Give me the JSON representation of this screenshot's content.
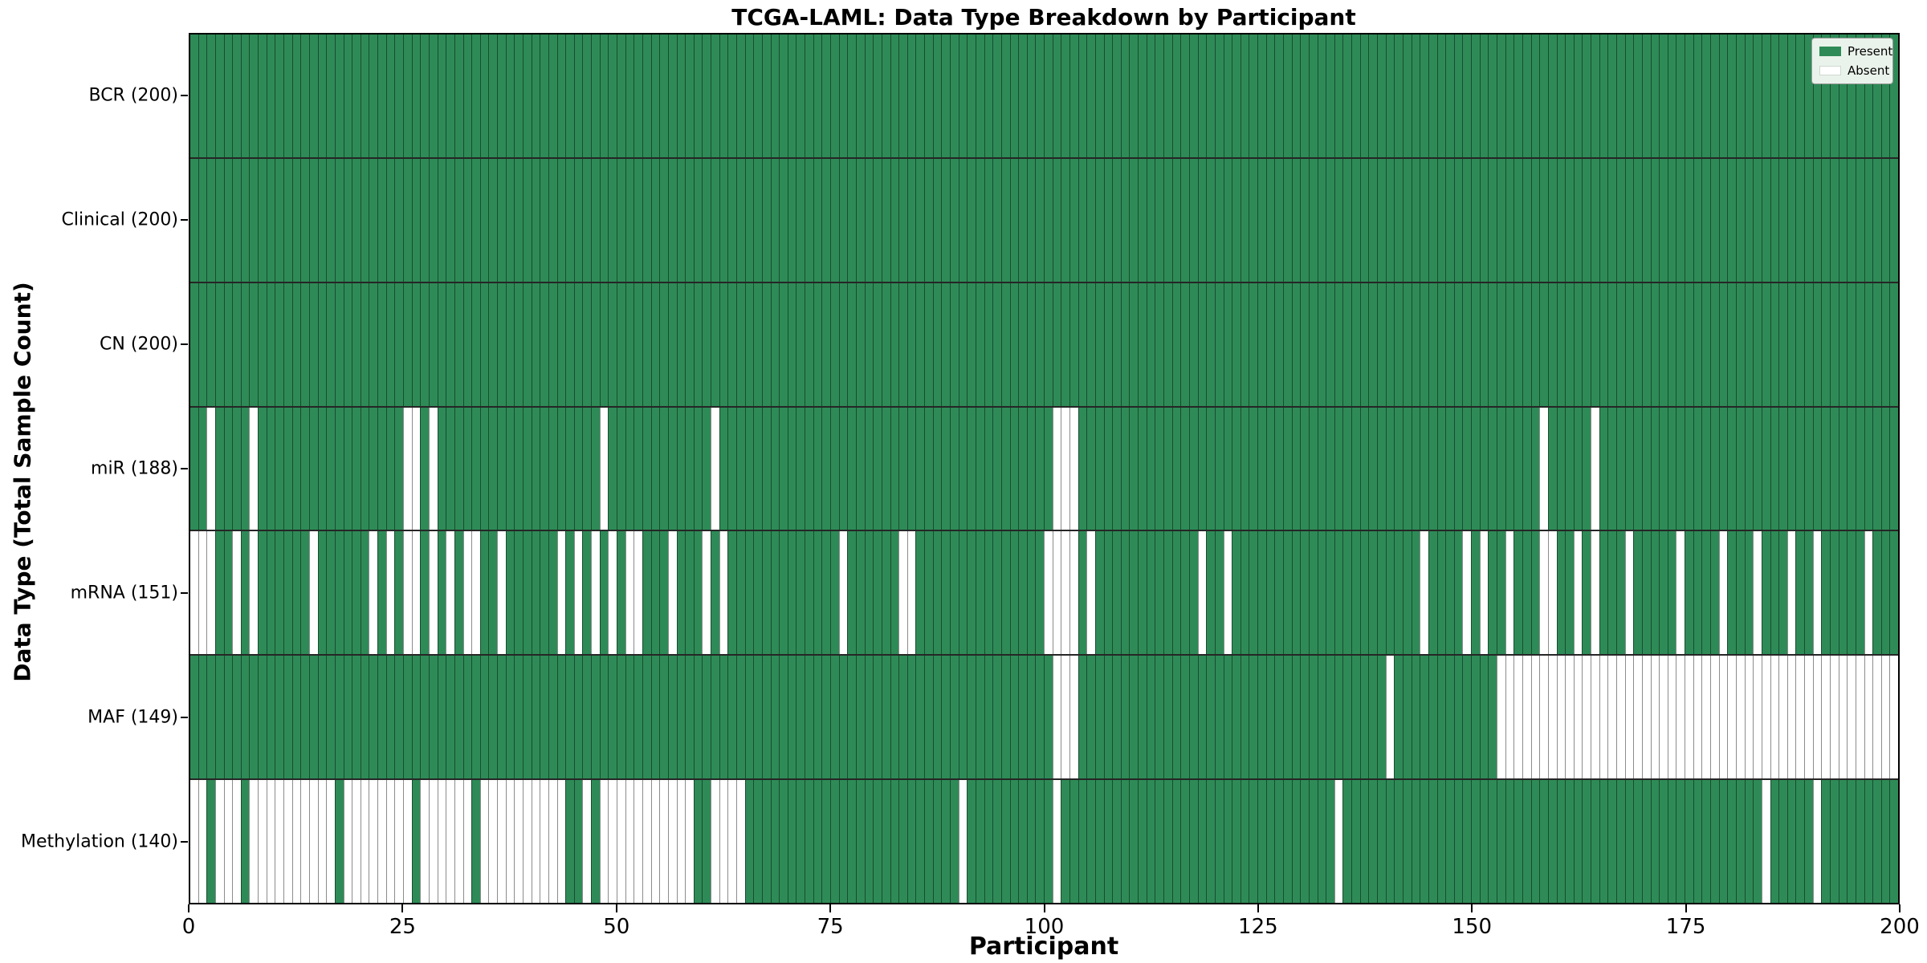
{
  "title": "TCGA-LAML: Data Type Breakdown by Participant",
  "xlabel": "Participant",
  "ylabel": "Data Type (Total Sample Count)",
  "legend": {
    "present_label": "Present",
    "absent_label": "Absent",
    "position": "upper right"
  },
  "colors": {
    "present": "#2e8b57",
    "absent": "#ffffff",
    "cell_edge": "rgba(0,0,0,0.45)",
    "row_separator": "#000000",
    "legend_bg": "#eaf3eb"
  },
  "n_participants": 200,
  "chart_data": {
    "type": "heatmap",
    "x_axis": {
      "label": "Participant",
      "range": [
        0,
        200
      ],
      "ticks": [
        0,
        25,
        50,
        75,
        100,
        125,
        150,
        175,
        200
      ]
    },
    "y_axis": {
      "label": "Data Type (Total Sample Count)"
    },
    "cell_states": [
      "Present",
      "Absent"
    ],
    "rows": [
      {
        "name": "BCR",
        "label": "BCR (200)",
        "present_count": 200,
        "absent_participants": []
      },
      {
        "name": "Clinical",
        "label": "Clinical (200)",
        "present_count": 200,
        "absent_participants": []
      },
      {
        "name": "CN",
        "label": "CN (200)",
        "present_count": 200,
        "absent_participants": []
      },
      {
        "name": "miR",
        "label": "miR (188)",
        "present_count": 188,
        "absent_participants": [
          2,
          7,
          25,
          26,
          28,
          48,
          61,
          101,
          102,
          103,
          158,
          164
        ]
      },
      {
        "name": "mRNA",
        "label": "mRNA (151)",
        "present_count": 151,
        "absent_participants": [
          0,
          1,
          2,
          5,
          7,
          14,
          21,
          23,
          25,
          26,
          28,
          30,
          32,
          33,
          36,
          43,
          45,
          47,
          49,
          51,
          52,
          56,
          60,
          62,
          76,
          83,
          84,
          100,
          101,
          102,
          103,
          105,
          118,
          121,
          144,
          149,
          151,
          154,
          158,
          159,
          162,
          164,
          168,
          174,
          179,
          183,
          187,
          190,
          196
        ]
      },
      {
        "name": "MAF",
        "label": "MAF (149)",
        "present_count": 149,
        "absent_participants": [
          101,
          102,
          103,
          140,
          153,
          154,
          155,
          156,
          157,
          158,
          159,
          160,
          161,
          162,
          163,
          164,
          165,
          166,
          167,
          168,
          169,
          170,
          171,
          172,
          173,
          174,
          175,
          176,
          177,
          178,
          179,
          180,
          181,
          182,
          183,
          184,
          185,
          186,
          187,
          188,
          189,
          190,
          191,
          192,
          193,
          194,
          195,
          196,
          197,
          198,
          199
        ]
      },
      {
        "name": "Methylation",
        "label": "Methylation (140)",
        "present_count": 140,
        "absent_participants": [
          0,
          1,
          3,
          4,
          5,
          7,
          8,
          9,
          10,
          11,
          12,
          13,
          14,
          15,
          16,
          18,
          19,
          20,
          21,
          22,
          23,
          24,
          25,
          27,
          28,
          29,
          30,
          31,
          32,
          34,
          35,
          36,
          37,
          38,
          39,
          40,
          41,
          42,
          43,
          46,
          48,
          49,
          50,
          51,
          52,
          53,
          54,
          55,
          56,
          57,
          58,
          61,
          62,
          63,
          64,
          90,
          101,
          134,
          184,
          190
        ]
      }
    ]
  }
}
